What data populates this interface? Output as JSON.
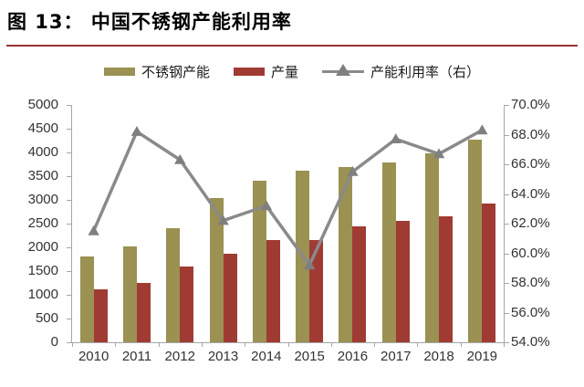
{
  "header": {
    "title": "图 13：  中国不锈钢产能利用率"
  },
  "chart_data": {
    "type": "bar",
    "subtype": "bar+line combo, line on secondary axis",
    "title": "中国不锈钢产能利用率",
    "categories": [
      "2010",
      "2011",
      "2012",
      "2013",
      "2014",
      "2015",
      "2016",
      "2017",
      "2018",
      "2019"
    ],
    "series": [
      {
        "name": "不锈钢产能",
        "key": "capacity",
        "type": "bar",
        "axis": "left",
        "color": "#9A9152",
        "values": [
          1800,
          2020,
          2400,
          3040,
          3400,
          3620,
          3700,
          3790,
          3990,
          4270
        ]
      },
      {
        "name": "产量",
        "key": "production",
        "type": "bar",
        "axis": "left",
        "color": "#A03B34",
        "values": [
          1120,
          1250,
          1600,
          1870,
          2160,
          2160,
          2440,
          2560,
          2650,
          2920
        ]
      },
      {
        "name": "产能利用率（右）",
        "key": "utilization",
        "type": "line",
        "axis": "right",
        "color": "#8A8A8A",
        "marker": "triangle-up",
        "marker_color": "#7F7F7F",
        "values": [
          61.5,
          68.2,
          66.3,
          62.2,
          63.2,
          59.2,
          65.5,
          67.7,
          66.7,
          68.3
        ]
      }
    ],
    "left_axis": {
      "min": 0,
      "max": 5000,
      "step": 500,
      "tick_labels": [
        "5000",
        "4500",
        "4000",
        "3500",
        "3000",
        "2500",
        "2000",
        "1500",
        "1000",
        "500",
        "0"
      ]
    },
    "right_axis": {
      "min": 54,
      "max": 70,
      "step": 2,
      "tick_labels": [
        "70.0%",
        "68.0%",
        "66.0%",
        "64.0%",
        "62.0%",
        "60.0%",
        "58.0%",
        "56.0%",
        "54.0%"
      ]
    },
    "legend_position": "top",
    "grid": false,
    "xlabel": "",
    "ylabel": ""
  },
  "colors": {
    "title_rule": "#943634",
    "axis_line": "#A6A6A6",
    "axis_text": "#333333",
    "background": "#FFFFFF"
  }
}
